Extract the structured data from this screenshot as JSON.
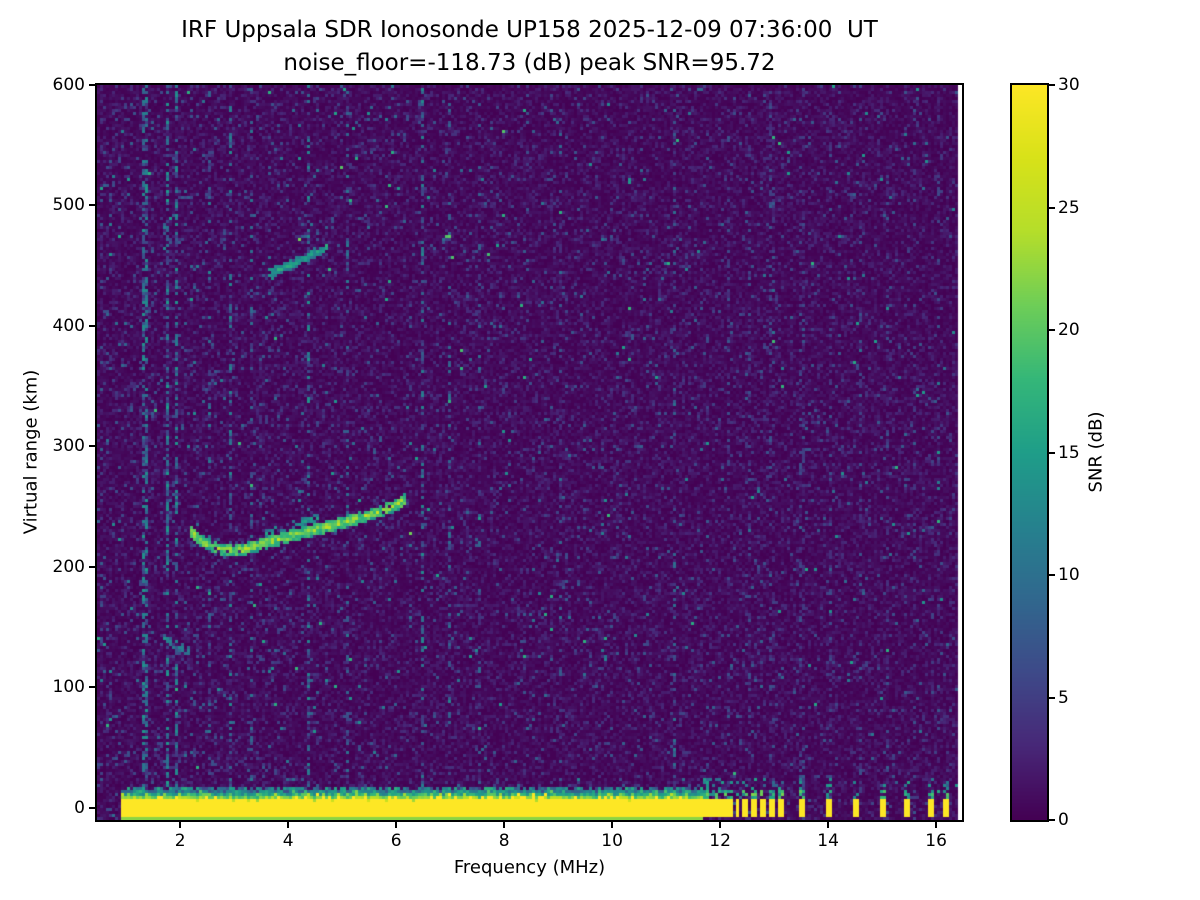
{
  "chart_data": {
    "type": "heatmap",
    "title": "IRF Uppsala SDR Ionosonde UP158 2025-12-09 07:36:00  UT",
    "subtitle": "noise_floor=-118.73 (dB) peak SNR=95.72",
    "xlabel": "Frequency (MHz)",
    "ylabel": "Virtual range (km)",
    "xlim": [
      0.46,
      16.48
    ],
    "ylim": [
      -10,
      600
    ],
    "clim": [
      0,
      30
    ],
    "x_ticks": [
      2,
      4,
      6,
      8,
      10,
      12,
      14,
      16
    ],
    "y_ticks": [
      0,
      100,
      200,
      300,
      400,
      500,
      600
    ],
    "colorbar": {
      "label": "SNR (dB)",
      "ticks": [
        0,
        5,
        10,
        15,
        20,
        25,
        30
      ]
    },
    "colormap": "viridis",
    "colormap_stops": [
      "#440154",
      "#482878",
      "#3e4a89",
      "#31688e",
      "#26828e",
      "#1f9e89",
      "#35b779",
      "#6ece58",
      "#b5de2b",
      "#d8e219",
      "#fde725"
    ],
    "colors": {
      "figure_background": "#ffffff",
      "axes": "#000000"
    },
    "noise": {
      "base_mean": 1.0,
      "speckle_prob": 0.03,
      "bright_speckle_prob": 0.004,
      "left_boost": 1.7,
      "boost_below_mhz": 4
    },
    "ground_band": {
      "f_start": 0.92,
      "f_end": 11.68,
      "center_km": 0,
      "core_halfwidth_km": 6,
      "max_snr": 30,
      "echo_km": 15
    },
    "pulse_blips": [
      11.74,
      11.84,
      11.95,
      12.07,
      12.2,
      12.33,
      12.47,
      12.62,
      12.78,
      12.95,
      13.12,
      13.52,
      14.02,
      14.52,
      15.02,
      15.47,
      15.92,
      16.17
    ],
    "rfi_streaks": [
      {
        "f": 1.35,
        "w": 0.06,
        "density": 0.5,
        "max": 14
      },
      {
        "f": 1.57,
        "w": 0.05,
        "density": 0.35,
        "max": 12
      },
      {
        "f": 1.76,
        "w": 0.07,
        "density": 0.55,
        "max": 15
      },
      {
        "f": 1.92,
        "w": 0.06,
        "density": 0.5,
        "max": 14
      },
      {
        "f": 2.07,
        "w": 0.05,
        "density": 0.3,
        "max": 12
      },
      {
        "f": 2.52,
        "w": 0.05,
        "density": 0.2,
        "max": 11
      },
      {
        "f": 2.95,
        "w": 0.06,
        "density": 0.3,
        "max": 13
      },
      {
        "f": 3.33,
        "w": 0.05,
        "density": 0.2,
        "max": 11
      },
      {
        "f": 4.37,
        "w": 0.06,
        "density": 0.35,
        "max": 14
      },
      {
        "f": 5.08,
        "w": 0.05,
        "density": 0.2,
        "max": 11
      },
      {
        "f": 6.48,
        "w": 0.07,
        "density": 0.4,
        "max": 13
      },
      {
        "f": 6.98,
        "w": 0.05,
        "density": 0.2,
        "max": 10
      },
      {
        "f": 7.52,
        "w": 0.05,
        "density": 0.15,
        "max": 10
      },
      {
        "f": 8.35,
        "w": 0.05,
        "density": 0.12,
        "max": 9
      },
      {
        "f": 9.05,
        "w": 0.05,
        "density": 0.15,
        "max": 10
      },
      {
        "f": 10.35,
        "w": 0.05,
        "density": 0.15,
        "max": 10
      },
      {
        "f": 11.15,
        "w": 0.05,
        "density": 0.15,
        "max": 10
      },
      {
        "f": 12.15,
        "w": 0.1,
        "density": 0.2,
        "max": 7
      },
      {
        "f": 12.55,
        "w": 0.1,
        "density": 0.2,
        "max": 7
      },
      {
        "f": 12.95,
        "w": 0.1,
        "density": 0.18,
        "max": 7
      },
      {
        "f": 13.52,
        "w": 0.1,
        "density": 0.18,
        "max": 7
      },
      {
        "f": 14.05,
        "w": 0.1,
        "density": 0.18,
        "max": 7
      },
      {
        "f": 14.6,
        "w": 0.1,
        "density": 0.15,
        "max": 7
      },
      {
        "f": 15.1,
        "w": 0.1,
        "density": 0.15,
        "max": 7
      },
      {
        "f": 15.6,
        "w": 0.1,
        "density": 0.15,
        "max": 7
      },
      {
        "f": 16.05,
        "w": 0.1,
        "density": 0.15,
        "max": 7
      }
    ],
    "traces": [
      {
        "name": "f-layer-first-hop",
        "points": [
          [
            2.2,
            229
          ],
          [
            2.45,
            220
          ],
          [
            2.75,
            215
          ],
          [
            3.1,
            214
          ],
          [
            3.45,
            218
          ],
          [
            3.85,
            223
          ],
          [
            4.25,
            228
          ],
          [
            4.7,
            233
          ],
          [
            5.2,
            239
          ],
          [
            5.7,
            246
          ],
          [
            6.0,
            251
          ],
          [
            6.18,
            256
          ]
        ],
        "thickness": 5,
        "snr": 24,
        "density": 0.95
      },
      {
        "name": "f-layer-ox-split",
        "points": [
          [
            3.5,
            226
          ],
          [
            4.0,
            234
          ],
          [
            4.55,
            241
          ]
        ],
        "thickness": 3,
        "snr": 16,
        "density": 0.6
      },
      {
        "name": "second-hop",
        "points": [
          [
            3.62,
            443
          ],
          [
            3.95,
            449
          ],
          [
            4.3,
            456
          ],
          [
            4.6,
            463
          ],
          [
            4.75,
            467
          ]
        ],
        "thickness": 4,
        "snr": 17,
        "density": 0.8
      },
      {
        "name": "low-echo",
        "points": [
          [
            1.68,
            141
          ],
          [
            1.95,
            134
          ],
          [
            2.18,
            130
          ]
        ],
        "thickness": 3.5,
        "snr": 14,
        "density": 0.7
      }
    ],
    "missing_column_from": 16.38
  }
}
